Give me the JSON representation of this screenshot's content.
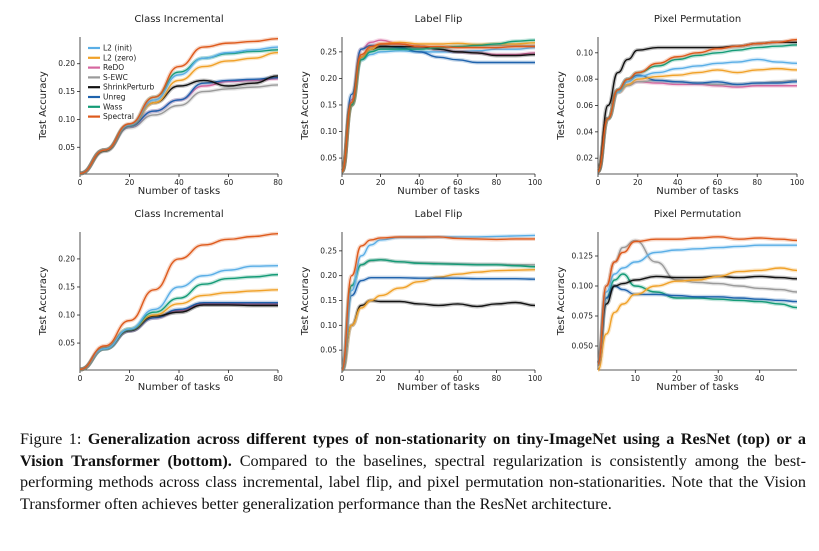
{
  "figure": {
    "caption_label": "Figure 1:",
    "caption_bold": "Generalization across different types of non-stationarity on tiny-ImageNet using a ResNet (top) or a Vision Transformer (bottom).",
    "caption_text": "Compared to the baselines, spectral regularization is consistently among the best-performing methods across class incremental, label flip, and pixel permutation non-stationarities. Note that the Vision Transformer often achieves better generalization performance than the ResNet architecture."
  },
  "colors": {
    "L2 (init)": "#5aaee6",
    "L2 (zero)": "#f0a128",
    "ReDO": "#d6679f",
    "S-EWC": "#9a9a9a",
    "ShrinkPerturb": "#111111",
    "Unreg": "#1f63ad",
    "Wass": "#149b76",
    "Spectral": "#de5a1c"
  },
  "legend": [
    "L2 (init)",
    "L2 (zero)",
    "ReDO",
    "S-EWC",
    "ShrinkPerturb",
    "Unreg",
    "Wass",
    "Spectral"
  ],
  "chart_data": [
    {
      "type": "line",
      "title": "Class Incremental",
      "xlabel": "Number of tasks",
      "ylabel": "Test Accuracy",
      "xlim": [
        0,
        80
      ],
      "ylim": [
        0.002,
        0.248
      ],
      "xticks": [
        0,
        20,
        40,
        60,
        80
      ],
      "yticks": [
        0.05,
        0.1,
        0.15,
        0.2
      ],
      "ytick_labels": [
        "0.05",
        "0.10",
        "0.15",
        "0.20"
      ],
      "grid": false,
      "legend": "top-left",
      "x": [
        0,
        10,
        20,
        30,
        40,
        50,
        60,
        70,
        80
      ],
      "series": [
        {
          "name": "S-EWC",
          "values": [
            0.003,
            0.045,
            0.085,
            0.108,
            0.125,
            0.15,
            0.155,
            0.158,
            0.162
          ]
        },
        {
          "name": "ReDO",
          "values": [
            0.003,
            0.045,
            0.088,
            0.115,
            0.135,
            0.16,
            0.168,
            0.17,
            0.173
          ]
        },
        {
          "name": "Unreg",
          "values": [
            0.003,
            0.045,
            0.088,
            0.115,
            0.135,
            0.165,
            0.17,
            0.172,
            0.175
          ]
        },
        {
          "name": "ShrinkPerturb",
          "values": [
            0.003,
            0.043,
            0.09,
            0.13,
            0.16,
            0.17,
            0.16,
            0.165,
            0.178
          ]
        },
        {
          "name": "L2 (zero)",
          "values": [
            0.003,
            0.045,
            0.09,
            0.13,
            0.17,
            0.195,
            0.205,
            0.21,
            0.22
          ]
        },
        {
          "name": "Wass",
          "values": [
            0.003,
            0.045,
            0.09,
            0.14,
            0.185,
            0.21,
            0.218,
            0.222,
            0.225
          ]
        },
        {
          "name": "L2 (init)",
          "values": [
            0.003,
            0.045,
            0.09,
            0.135,
            0.18,
            0.21,
            0.22,
            0.225,
            0.23
          ]
        },
        {
          "name": "Spectral",
          "values": [
            0.003,
            0.045,
            0.092,
            0.14,
            0.195,
            0.23,
            0.237,
            0.24,
            0.245
          ]
        }
      ]
    },
    {
      "type": "line",
      "title": "Label Flip",
      "xlabel": "Number of tasks",
      "ylabel": "Test Accuracy",
      "xlim": [
        0,
        100
      ],
      "ylim": [
        0.02,
        0.278
      ],
      "xticks": [
        0,
        20,
        40,
        60,
        80,
        100
      ],
      "yticks": [
        0.05,
        0.1,
        0.15,
        0.2,
        0.25
      ],
      "ytick_labels": [
        "0.05",
        "0.10",
        "0.15",
        "0.20",
        "0.25"
      ],
      "grid": false,
      "x": [
        0,
        5,
        10,
        15,
        20,
        30,
        40,
        50,
        60,
        70,
        80,
        90,
        100
      ],
      "series": [
        {
          "name": "L2 (init)",
          "values": [
            0.025,
            0.15,
            0.235,
            0.245,
            0.25,
            0.252,
            0.25,
            0.25,
            0.25,
            0.252,
            0.255,
            0.255,
            0.258
          ]
        },
        {
          "name": "S-EWC",
          "values": [
            0.025,
            0.15,
            0.24,
            0.255,
            0.258,
            0.258,
            0.258,
            0.258,
            0.26,
            0.262,
            0.262,
            0.262,
            0.262
          ]
        },
        {
          "name": "ReDO",
          "values": [
            0.025,
            0.16,
            0.255,
            0.268,
            0.272,
            0.265,
            0.26,
            0.255,
            0.25,
            0.248,
            0.245,
            0.245,
            0.248
          ]
        },
        {
          "name": "Unreg",
          "values": [
            0.025,
            0.17,
            0.255,
            0.262,
            0.262,
            0.258,
            0.25,
            0.24,
            0.235,
            0.23,
            0.23,
            0.23,
            0.23
          ]
        },
        {
          "name": "ShrinkPerturb",
          "values": [
            0.025,
            0.15,
            0.24,
            0.255,
            0.26,
            0.26,
            0.26,
            0.255,
            0.25,
            0.248,
            0.243,
            0.243,
            0.245
          ]
        },
        {
          "name": "L2 (zero)",
          "values": [
            0.025,
            0.15,
            0.24,
            0.255,
            0.265,
            0.268,
            0.265,
            0.265,
            0.266,
            0.264,
            0.265,
            0.265,
            0.267
          ]
        },
        {
          "name": "Wass",
          "values": [
            0.025,
            0.15,
            0.235,
            0.25,
            0.255,
            0.255,
            0.255,
            0.258,
            0.26,
            0.262,
            0.265,
            0.27,
            0.272
          ]
        },
        {
          "name": "Spectral",
          "values": [
            0.025,
            0.155,
            0.245,
            0.26,
            0.265,
            0.265,
            0.26,
            0.26,
            0.258,
            0.258,
            0.258,
            0.26,
            0.26
          ]
        }
      ]
    },
    {
      "type": "line",
      "title": "Pixel Permutation",
      "xlabel": "Number of tasks",
      "ylabel": "Test Accuracy",
      "xlim": [
        0,
        100
      ],
      "ylim": [
        0.008,
        0.112
      ],
      "xticks": [
        0,
        20,
        40,
        60,
        80,
        100
      ],
      "yticks": [
        0.02,
        0.04,
        0.06,
        0.08,
        0.1
      ],
      "ytick_labels": [
        "0.02",
        "0.04",
        "0.06",
        "0.08",
        "0.10"
      ],
      "grid": false,
      "x": [
        0,
        5,
        10,
        15,
        20,
        30,
        40,
        50,
        60,
        70,
        80,
        90,
        100
      ],
      "series": [
        {
          "name": "ReDO",
          "values": [
            0.01,
            0.05,
            0.07,
            0.076,
            0.078,
            0.077,
            0.076,
            0.076,
            0.075,
            0.074,
            0.075,
            0.075,
            0.075
          ]
        },
        {
          "name": "S-EWC",
          "values": [
            0.01,
            0.05,
            0.07,
            0.075,
            0.078,
            0.079,
            0.078,
            0.077,
            0.076,
            0.076,
            0.077,
            0.078,
            0.079
          ]
        },
        {
          "name": "Unreg",
          "values": [
            0.01,
            0.05,
            0.072,
            0.08,
            0.083,
            0.079,
            0.078,
            0.077,
            0.078,
            0.076,
            0.077,
            0.077,
            0.078
          ]
        },
        {
          "name": "L2 (zero)",
          "values": [
            0.01,
            0.05,
            0.07,
            0.076,
            0.08,
            0.082,
            0.083,
            0.085,
            0.087,
            0.085,
            0.087,
            0.088,
            0.087
          ]
        },
        {
          "name": "L2 (init)",
          "values": [
            0.01,
            0.05,
            0.07,
            0.078,
            0.082,
            0.085,
            0.088,
            0.09,
            0.092,
            0.093,
            0.095,
            0.093,
            0.092
          ]
        },
        {
          "name": "Wass",
          "values": [
            0.01,
            0.05,
            0.072,
            0.08,
            0.085,
            0.09,
            0.095,
            0.098,
            0.1,
            0.102,
            0.104,
            0.105,
            0.106
          ]
        },
        {
          "name": "ShrinkPerturb",
          "values": [
            0.01,
            0.06,
            0.085,
            0.095,
            0.102,
            0.104,
            0.104,
            0.104,
            0.104,
            0.105,
            0.107,
            0.108,
            0.108
          ]
        },
        {
          "name": "Spectral",
          "values": [
            0.01,
            0.05,
            0.072,
            0.08,
            0.085,
            0.092,
            0.097,
            0.1,
            0.103,
            0.105,
            0.107,
            0.108,
            0.11
          ]
        }
      ]
    },
    {
      "type": "line",
      "title": "Class Incremental",
      "xlabel": "Number of tasks",
      "ylabel": "Test Accuracy",
      "xlim": [
        0,
        80
      ],
      "ylim": [
        0.002,
        0.248
      ],
      "xticks": [
        0,
        20,
        40,
        60,
        80
      ],
      "yticks": [
        0.05,
        0.1,
        0.15,
        0.2
      ],
      "ytick_labels": [
        "0.05",
        "0.10",
        "0.15",
        "0.20"
      ],
      "grid": false,
      "x": [
        0,
        10,
        20,
        30,
        40,
        50,
        60,
        70,
        80
      ],
      "series": [
        {
          "name": "S-EWC",
          "values": [
            0.003,
            0.04,
            0.072,
            0.095,
            0.105,
            0.118,
            0.118,
            0.118,
            0.118
          ]
        },
        {
          "name": "ReDO",
          "values": [
            0.003,
            0.04,
            0.072,
            0.095,
            0.108,
            0.12,
            0.12,
            0.12,
            0.12
          ]
        },
        {
          "name": "Unreg",
          "values": [
            0.003,
            0.04,
            0.072,
            0.095,
            0.11,
            0.122,
            0.122,
            0.122,
            0.122
          ]
        },
        {
          "name": "ShrinkPerturb",
          "values": [
            0.003,
            0.04,
            0.072,
            0.098,
            0.105,
            0.118,
            0.118,
            0.117,
            0.117
          ]
        },
        {
          "name": "L2 (zero)",
          "values": [
            0.003,
            0.04,
            0.075,
            0.1,
            0.12,
            0.135,
            0.14,
            0.143,
            0.145
          ]
        },
        {
          "name": "Wass",
          "values": [
            0.003,
            0.04,
            0.075,
            0.105,
            0.13,
            0.155,
            0.165,
            0.168,
            0.172
          ]
        },
        {
          "name": "L2 (init)",
          "values": [
            0.003,
            0.04,
            0.075,
            0.11,
            0.15,
            0.17,
            0.18,
            0.187,
            0.188
          ]
        },
        {
          "name": "Spectral",
          "values": [
            0.003,
            0.045,
            0.09,
            0.145,
            0.2,
            0.225,
            0.235,
            0.24,
            0.245
          ]
        }
      ]
    },
    {
      "type": "line",
      "title": "Label Flip",
      "xlabel": "Number of tasks",
      "ylabel": "Test Accuracy",
      "xlim": [
        0,
        100
      ],
      "ylim": [
        0.01,
        0.288
      ],
      "xticks": [
        0,
        20,
        40,
        60,
        80,
        100
      ],
      "yticks": [
        0.05,
        0.1,
        0.15,
        0.2,
        0.25
      ],
      "ytick_labels": [
        "0.05",
        "0.10",
        "0.15",
        "0.20",
        "0.25"
      ],
      "grid": false,
      "x": [
        0,
        5,
        10,
        15,
        20,
        30,
        40,
        50,
        60,
        70,
        80,
        90,
        100
      ],
      "series": [
        {
          "name": "ShrinkPerturb",
          "values": [
            0.01,
            0.1,
            0.14,
            0.15,
            0.148,
            0.148,
            0.143,
            0.14,
            0.143,
            0.138,
            0.143,
            0.146,
            0.14
          ]
        },
        {
          "name": "L2 (zero)",
          "values": [
            0.01,
            0.1,
            0.135,
            0.15,
            0.16,
            0.175,
            0.188,
            0.197,
            0.203,
            0.207,
            0.21,
            0.211,
            0.212
          ]
        },
        {
          "name": "Unreg",
          "values": [
            0.01,
            0.16,
            0.19,
            0.196,
            0.196,
            0.196,
            0.195,
            0.195,
            0.195,
            0.194,
            0.194,
            0.194,
            0.193
          ]
        },
        {
          "name": "S-EWC",
          "values": [
            0.01,
            0.18,
            0.222,
            0.23,
            0.232,
            0.228,
            0.226,
            0.225,
            0.224,
            0.223,
            0.223,
            0.222,
            0.222
          ]
        },
        {
          "name": "Wass",
          "values": [
            0.01,
            0.18,
            0.222,
            0.231,
            0.232,
            0.228,
            0.225,
            0.224,
            0.223,
            0.222,
            0.222,
            0.22,
            0.218
          ]
        },
        {
          "name": "L2 (init)",
          "values": [
            0.01,
            0.17,
            0.24,
            0.262,
            0.272,
            0.277,
            0.277,
            0.278,
            0.278,
            0.278,
            0.279,
            0.28,
            0.281
          ]
        },
        {
          "name": "Spectral",
          "values": [
            0.01,
            0.2,
            0.26,
            0.272,
            0.276,
            0.278,
            0.278,
            0.278,
            0.275,
            0.274,
            0.273,
            0.274,
            0.274
          ]
        }
      ]
    },
    {
      "type": "line",
      "title": "Pixel Permutation",
      "xlabel": "Number of tasks",
      "ylabel": "Test Accuracy",
      "xlim": [
        1,
        49
      ],
      "ylim": [
        0.03,
        0.145
      ],
      "xticks": [
        10,
        20,
        30,
        40
      ],
      "yticks": [
        0.05,
        0.075,
        0.1,
        0.125
      ],
      "ytick_labels": [
        "0.050",
        "0.075",
        "0.100",
        "0.125"
      ],
      "grid": false,
      "x": [
        1,
        3,
        5,
        7,
        10,
        15,
        20,
        25,
        30,
        35,
        40,
        45,
        49
      ],
      "series": [
        {
          "name": "Wass",
          "values": [
            0.035,
            0.09,
            0.105,
            0.11,
            0.1,
            0.095,
            0.09,
            0.09,
            0.089,
            0.088,
            0.087,
            0.085,
            0.082
          ]
        },
        {
          "name": "Unreg",
          "values": [
            0.035,
            0.09,
            0.1,
            0.097,
            0.093,
            0.093,
            0.092,
            0.091,
            0.091,
            0.09,
            0.089,
            0.088,
            0.087
          ]
        },
        {
          "name": "S-EWC",
          "values": [
            0.035,
            0.1,
            0.12,
            0.132,
            0.138,
            0.12,
            0.105,
            0.103,
            0.102,
            0.1,
            0.098,
            0.097,
            0.095
          ]
        },
        {
          "name": "ShrinkPerturb",
          "values": [
            0.035,
            0.085,
            0.1,
            0.102,
            0.105,
            0.108,
            0.107,
            0.107,
            0.108,
            0.107,
            0.108,
            0.107,
            0.106
          ]
        },
        {
          "name": "L2 (zero)",
          "values": [
            0.03,
            0.06,
            0.078,
            0.085,
            0.093,
            0.1,
            0.104,
            0.105,
            0.108,
            0.112,
            0.113,
            0.115,
            0.113
          ]
        },
        {
          "name": "L2 (init)",
          "values": [
            0.035,
            0.095,
            0.11,
            0.115,
            0.12,
            0.128,
            0.13,
            0.131,
            0.132,
            0.133,
            0.134,
            0.134,
            0.134
          ]
        },
        {
          "name": "Spectral",
          "values": [
            0.035,
            0.1,
            0.12,
            0.128,
            0.137,
            0.139,
            0.139,
            0.14,
            0.141,
            0.139,
            0.14,
            0.139,
            0.138
          ]
        }
      ]
    }
  ]
}
